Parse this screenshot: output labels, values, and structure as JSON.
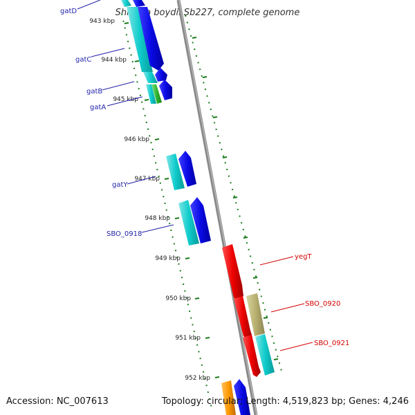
{
  "title": "Shigella boydii Sb227, complete genome",
  "footer": {
    "accession": "Accession: NC_007613",
    "stats": "Topology: circular; Length: 4,519,823 bp; Genes: 4,246"
  },
  "colors": {
    "label_blue": "#1f1fa8",
    "label_red": "#d40000",
    "backbone": "#8a8a8a",
    "tick": "#1a7a1a"
  },
  "scale": {
    "unit": "kbp",
    "ticks": [
      "943 kbp",
      "944 kbp",
      "945 kbp",
      "946 kbp",
      "947 kbp",
      "948 kbp",
      "949 kbp",
      "950 kbp",
      "951 kbp",
      "952 kbp"
    ]
  },
  "gene_labels": {
    "gatD": "gatD",
    "gatC": "gatC",
    "gatB": "gatB",
    "gatA": "gatA",
    "gatY": "gatY",
    "SBO_0918": "SBO_0918",
    "yegT": "yegT",
    "SBO_0920": "SBO_0920",
    "SBO_0921": "SBO_0921"
  },
  "genes": [
    {
      "id": "gatD",
      "strand": "minus",
      "color": "cyan"
    },
    {
      "id": "gatC",
      "strand": "minus",
      "color": "blue"
    },
    {
      "id": "gatB",
      "strand": "minus",
      "color": "blue"
    },
    {
      "id": "gatA",
      "strand": "minus",
      "color": "green"
    },
    {
      "id": "gatY",
      "strand": "minus",
      "color": "blue"
    },
    {
      "id": "SBO_0918",
      "strand": "minus",
      "color": "blue"
    },
    {
      "id": "yegT",
      "strand": "plus",
      "color": "red"
    },
    {
      "id": "SBO_0920",
      "strand": "plus",
      "color": "olive"
    },
    {
      "id": "SBO_0921",
      "strand": "plus",
      "color": "cyan"
    }
  ]
}
